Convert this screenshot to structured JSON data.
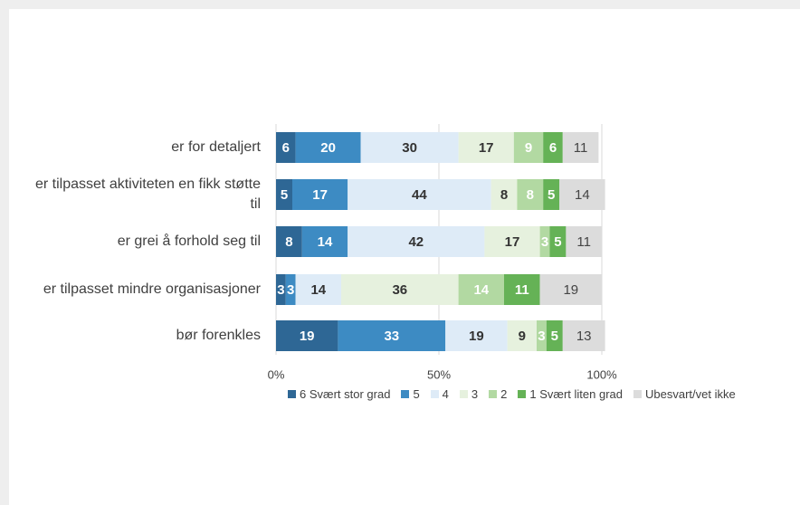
{
  "chart_data": {
    "type": "stacked_barh",
    "categories": [
      "er for detaljert",
      "er tilpasset aktiviteten en fikk støtte til",
      "er grei å forhold seg til",
      "er tilpasset mindre organisasjoner",
      "bør forenkles"
    ],
    "series": [
      {
        "name": "6 Svært stor grad",
        "color": "#2e6795",
        "label_color": "#ffffff",
        "values": [
          6,
          5,
          8,
          3,
          19
        ]
      },
      {
        "name": "5",
        "color": "#3d8bc3",
        "label_color": "#ffffff",
        "values": [
          20,
          17,
          14,
          3,
          33
        ]
      },
      {
        "name": "4",
        "color": "#deebf7",
        "label_color": "#333333",
        "values": [
          30,
          44,
          42,
          14,
          19
        ]
      },
      {
        "name": "3",
        "color": "#e6f1de",
        "label_color": "#333333",
        "values": [
          17,
          8,
          17,
          36,
          9
        ]
      },
      {
        "name": "2",
        "color": "#b2d9a2",
        "label_color": "#ffffff",
        "values": [
          9,
          8,
          3,
          14,
          3
        ]
      },
      {
        "name": "1 Svært liten grad",
        "color": "#65b256",
        "label_color": "#ffffff",
        "values": [
          6,
          5,
          5,
          11,
          5
        ]
      },
      {
        "name": "Ubesvart/vet ikke",
        "color": "#dcdcdc",
        "label_color": "#444444",
        "values": [
          11,
          14,
          11,
          19,
          13
        ]
      }
    ],
    "xlim": [
      0,
      100
    ],
    "xticks": [
      {
        "value": 0,
        "label": "0%"
      },
      {
        "value": 50,
        "label": "50%"
      },
      {
        "value": 100,
        "label": "100%"
      }
    ],
    "grid": true
  }
}
